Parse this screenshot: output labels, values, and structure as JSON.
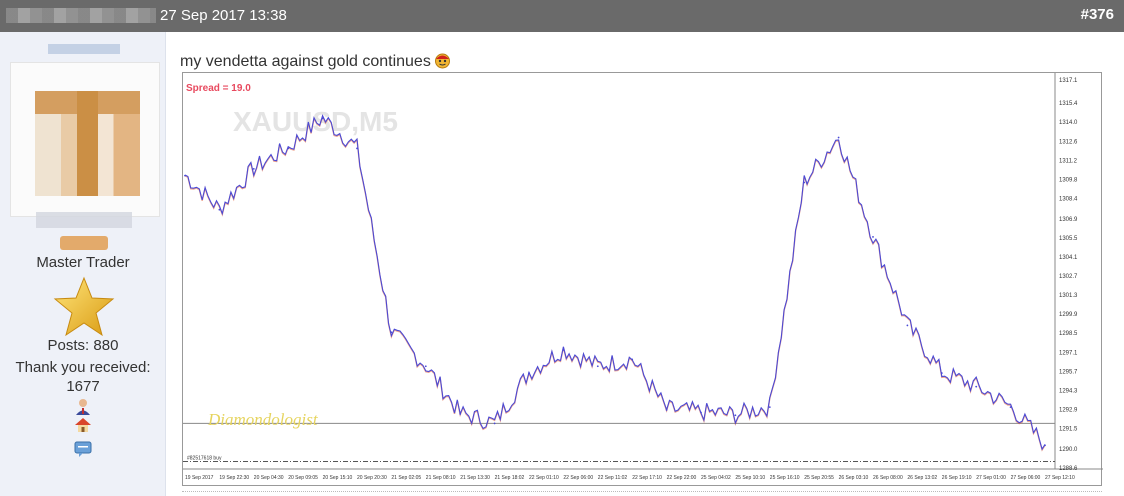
{
  "post": {
    "date": "27 Sep 2017 13:38",
    "number": "#376",
    "message": "my vendetta against gold continues"
  },
  "user": {
    "rank": "Master Trader",
    "posts": "Posts: 880",
    "thanks_label": "Thank you received:",
    "thanks_count": "1677"
  },
  "chart_data": {
    "type": "line",
    "title": "",
    "watermark": "XAUUSD,M5",
    "spread_label": "Spread = 19.0",
    "signature": "Diamondologist",
    "x": [
      "19 Sep 2017",
      "19 Sep 22:30",
      "20 Sep 04:30",
      "20 Sep 09:05",
      "20 Sep 15:10",
      "20 Sep 20:30",
      "21 Sep 02:05",
      "21 Sep 08:10",
      "21 Sep 13:30",
      "21 Sep 18:02",
      "22 Sep 01:10",
      "22 Sep 06:00",
      "22 Sep 11:02",
      "22 Sep 17:10",
      "22 Sep 22:00",
      "25 Sep 04:02",
      "25 Sep 10:10",
      "25 Sep 16:10",
      "25 Sep 20:55",
      "26 Sep 03:10",
      "26 Sep 08:00",
      "26 Sep 13:02",
      "26 Sep 19:10",
      "27 Sep 01:00",
      "27 Sep 06:00",
      "27 Sep 12:10"
    ],
    "values": [
      1310.0,
      1307.5,
      1310.5,
      1312.0,
      1314.2,
      1312.0,
      1298.5,
      1296.0,
      1292.5,
      1291.8,
      1295.5,
      1297.2,
      1296.0,
      1296.5,
      1292.8,
      1292.6,
      1292.4,
      1293.0,
      1309.5,
      1312.8,
      1305.5,
      1299.0,
      1295.5,
      1294.5,
      1293.0,
      1290.2
    ],
    "yticks": [
      "1317.1",
      "1315.4",
      "1314.0",
      "1312.6",
      "1311.2",
      "1309.8",
      "1308.4",
      "1306.9",
      "1305.5",
      "1304.1",
      "1302.7",
      "1301.3",
      "1299.9",
      "1298.5",
      "1297.1",
      "1295.7",
      "1294.3",
      "1292.9",
      "1291.5",
      "1290.0",
      "1288.6"
    ],
    "ylim": [
      1288.6,
      1317.1
    ],
    "hline_value": 1291.8,
    "order_line_value": 1289.0,
    "order_label": "#82517618 buy",
    "grid": false,
    "colors": {
      "line": "#4a4ad6",
      "accent": "#e0552c",
      "spread": "#e84a5f"
    }
  },
  "colors": {
    "topbar": "#6a6a6a",
    "sidebar": "#eef1f8"
  },
  "icons": [
    "star-icon",
    "user-icon",
    "home-icon",
    "message-icon",
    "emoji-icon"
  ]
}
